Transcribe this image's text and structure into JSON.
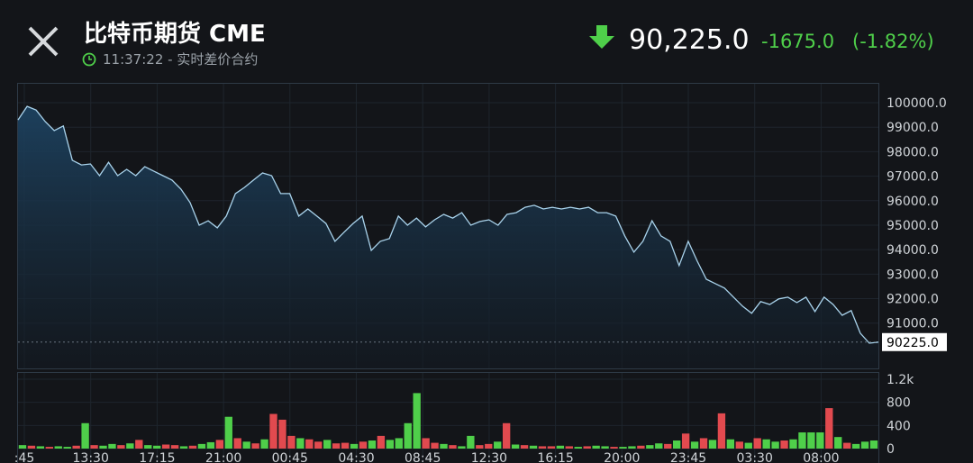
{
  "header": {
    "title": "比特币期货 CME",
    "subtitle": "11:37:22 - 实时差价合约",
    "price": "90,225.0",
    "change": "-1675.0",
    "change_pct": "(-1.82%)"
  },
  "chart_data": [
    {
      "type": "line",
      "color": "#a9d3ec",
      "values": [
        99300,
        99850,
        99700,
        99230,
        98860,
        99050,
        97650,
        97460,
        97500,
        97020,
        97570,
        97020,
        97280,
        97020,
        97390,
        97200,
        97020,
        96840,
        96470,
        95920,
        95000,
        95180,
        94890,
        95370,
        96290,
        96540,
        96840,
        97130,
        97020,
        96290,
        96290,
        95370,
        95660,
        95370,
        95070,
        94340,
        94710,
        95070,
        95370,
        93970,
        94340,
        94450,
        95370,
        95000,
        95290,
        94930,
        95220,
        95440,
        95290,
        95510,
        95000,
        95150,
        95220,
        95000,
        95440,
        95510,
        95730,
        95810,
        95660,
        95730,
        95660,
        95730,
        95660,
        95730,
        95510,
        95510,
        95370,
        94560,
        93900,
        94340,
        95180,
        94560,
        94340,
        93350,
        94340,
        93530,
        92790,
        92610,
        92430,
        92060,
        91690,
        91400,
        91880,
        91760,
        91990,
        92060,
        91840,
        92060,
        91470,
        92060,
        91760,
        91320,
        91510,
        90590,
        90180,
        90225
      ],
      "ylim": [
        89150,
        100810
      ],
      "yticks": [
        {
          "value": 100000,
          "label": "100000.0"
        },
        {
          "value": 99000,
          "label": "99000.0"
        },
        {
          "value": 98000,
          "label": "98000.0"
        },
        {
          "value": 97000,
          "label": "97000.0"
        },
        {
          "value": 96000,
          "label": "96000.0"
        },
        {
          "value": 95000,
          "label": "95000.0"
        },
        {
          "value": 94000,
          "label": "94000.0"
        },
        {
          "value": 93000,
          "label": "93000.0"
        },
        {
          "value": 92000,
          "label": "92000.0"
        },
        {
          "value": 91000,
          "label": "91000.0"
        }
      ],
      "last_label": {
        "value": 90225,
        "label": "90225.0"
      },
      "xtick_labels": [
        ":45",
        "13:30",
        "17:15",
        "21:00",
        "00:45",
        "04:30",
        "08:45",
        "12:30",
        "16:15",
        "20:00",
        "23:45",
        "03:30",
        "08:00"
      ],
      "grid": true
    },
    {
      "type": "bar",
      "up_color": "#4fcf4a",
      "down_color": "#e24a4f",
      "values": [
        60,
        50,
        40,
        30,
        40,
        30,
        50,
        440,
        60,
        50,
        80,
        60,
        90,
        150,
        60,
        50,
        70,
        60,
        40,
        50,
        80,
        110,
        150,
        550,
        180,
        120,
        90,
        160,
        600,
        500,
        220,
        180,
        160,
        120,
        150,
        90,
        100,
        80,
        120,
        140,
        220,
        150,
        180,
        440,
        960,
        180,
        100,
        80,
        60,
        40,
        220,
        60,
        80,
        120,
        440,
        70,
        60,
        50,
        40,
        40,
        50,
        40,
        30,
        40,
        50,
        40,
        30,
        30,
        40,
        50,
        60,
        90,
        80,
        140,
        260,
        120,
        180,
        150,
        610,
        160,
        120,
        100,
        180,
        160,
        120,
        140,
        160,
        280,
        280,
        280,
        700,
        200,
        100,
        80,
        120,
        140
      ],
      "rising": [
        1,
        0,
        1,
        0,
        1,
        1,
        0,
        1,
        0,
        1,
        1,
        0,
        1,
        0,
        1,
        1,
        0,
        0,
        1,
        0,
        1,
        1,
        0,
        1,
        0,
        1,
        0,
        1,
        0,
        0,
        0,
        1,
        0,
        0,
        1,
        0,
        0,
        1,
        0,
        1,
        0,
        1,
        1,
        1,
        1,
        0,
        0,
        1,
        0,
        1,
        1,
        0,
        0,
        1,
        0,
        1,
        0,
        1,
        0,
        0,
        1,
        0,
        1,
        0,
        1,
        1,
        0,
        1,
        1,
        0,
        1,
        1,
        0,
        1,
        0,
        1,
        0,
        1,
        0,
        1,
        0,
        1,
        0,
        1,
        1,
        0,
        1,
        1,
        1,
        1,
        0,
        1,
        0,
        1,
        1,
        1
      ],
      "ylim": [
        0,
        1325
      ],
      "yticks": [
        {
          "value": 1200,
          "label": "1.2k"
        },
        800,
        400,
        0
      ]
    }
  ]
}
